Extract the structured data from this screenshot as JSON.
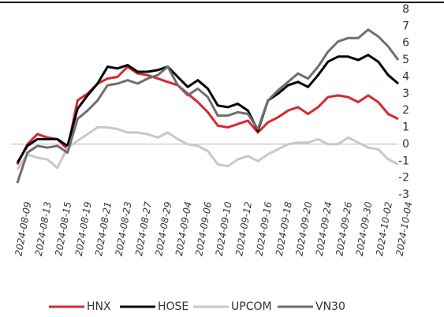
{
  "chart_data": {
    "type": "line",
    "categories": [
      "2024-08-09",
      null,
      "2024-08-13",
      null,
      "2024-08-15",
      null,
      "2024-08-19",
      null,
      "2024-08-21",
      null,
      "2024-08-23",
      null,
      "2024-08-27",
      null,
      "2024-08-29",
      null,
      "2024-09-04",
      null,
      "2024-09-06",
      null,
      "2024-09-10",
      null,
      "2024-09-12",
      null,
      "2024-09-16",
      null,
      "2024-09-18",
      null,
      "2024-09-20",
      null,
      "2024-09-24",
      null,
      "2024-09-26",
      null,
      "2024-09-30",
      null,
      "2024-10-02",
      null,
      "2024-10-04"
    ],
    "series": [
      {
        "name": "HNX",
        "color": "#d7282f",
        "values": [
          -1.2,
          0.0,
          0.6,
          0.4,
          0.3,
          -0.3,
          2.6,
          3.0,
          3.6,
          3.9,
          4.0,
          4.6,
          4.2,
          4.1,
          3.9,
          3.7,
          3.5,
          3.0,
          2.5,
          1.9,
          1.1,
          1.0,
          1.2,
          1.4,
          0.7,
          1.3,
          1.6,
          2.0,
          2.2,
          1.8,
          2.2,
          2.8,
          2.9,
          2.8,
          2.5,
          2.9,
          2.5,
          1.8,
          1.5
        ]
      },
      {
        "name": "HOSE",
        "color": "#000000",
        "values": [
          -1.1,
          -0.1,
          0.3,
          0.3,
          0.3,
          -0.1,
          2.1,
          2.9,
          3.6,
          4.6,
          4.5,
          4.7,
          4.3,
          4.3,
          4.4,
          4.6,
          4.0,
          3.4,
          3.8,
          3.3,
          2.3,
          2.2,
          2.4,
          2.0,
          0.8,
          2.6,
          3.0,
          3.5,
          3.7,
          3.4,
          4.1,
          4.9,
          5.2,
          5.2,
          5.0,
          5.3,
          4.9,
          4.1,
          3.6
        ]
      },
      {
        "name": "UPCOM",
        "color": "#c8c8c8",
        "values": [
          -1.5,
          -0.6,
          -0.8,
          -0.9,
          -1.4,
          -0.2,
          0.2,
          0.6,
          1.0,
          1.0,
          0.9,
          0.7,
          0.7,
          0.6,
          0.4,
          0.7,
          0.3,
          0.0,
          -0.1,
          -0.4,
          -1.2,
          -1.3,
          -0.9,
          -0.7,
          -1.0,
          -0.6,
          -0.3,
          0.0,
          0.1,
          0.1,
          0.3,
          0.0,
          0.0,
          0.4,
          0.1,
          -0.2,
          -0.3,
          -0.9,
          -1.2
        ]
      },
      {
        "name": "VN30",
        "color": "#6e6e6e",
        "values": [
          -2.3,
          -0.5,
          -0.1,
          -0.2,
          -0.1,
          -0.5,
          1.5,
          2.0,
          2.6,
          3.5,
          3.6,
          3.8,
          3.6,
          3.9,
          4.1,
          4.6,
          3.5,
          2.9,
          3.3,
          2.8,
          1.7,
          1.7,
          1.9,
          1.8,
          0.9,
          2.6,
          3.2,
          3.7,
          4.2,
          3.9,
          4.6,
          5.5,
          6.1,
          6.3,
          6.3,
          6.8,
          6.4,
          5.8,
          5.0
        ]
      }
    ],
    "ylim": [
      -3,
      8
    ],
    "yticks": [
      -3,
      -2,
      -1,
      0,
      1,
      2,
      3,
      4,
      5,
      6,
      7,
      8
    ]
  }
}
